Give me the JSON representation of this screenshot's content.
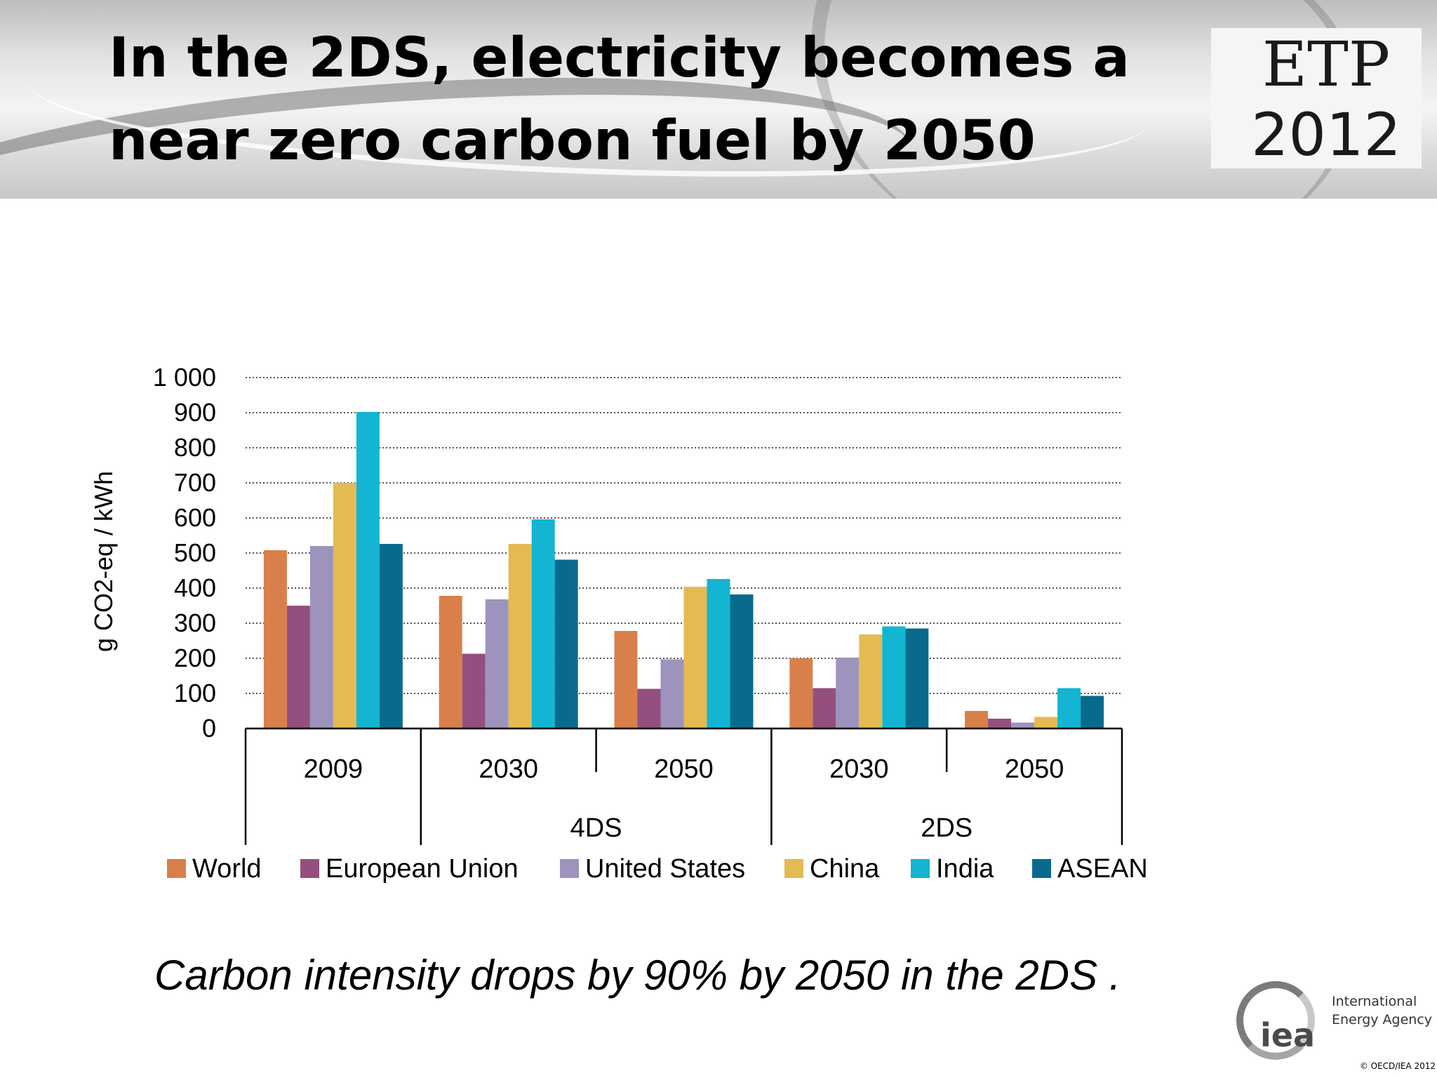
{
  "slide": {
    "title": "In the 2DS, electricity becomes a near zero carbon fuel by 2050",
    "caption": "Carbon intensity drops by 90% by 2050 in the 2DS .",
    "logo_etp": "ETP",
    "logo_etp_year": "2012",
    "iea_mark": "iea",
    "iea_name": "International Energy Agency",
    "copyright": "© OECD/IEA 2012"
  },
  "colors": {
    "World": "#D9804A",
    "European Union": "#93507E",
    "United States": "#9D93BD",
    "China": "#E4BB52",
    "India": "#13B5D2",
    "ASEAN": "#086B8E"
  },
  "chart_data": {
    "type": "bar",
    "ylabel": "g CO2-eq / kWh",
    "ylim": [
      0,
      1000
    ],
    "yticks": [
      0,
      100,
      200,
      300,
      400,
      500,
      600,
      700,
      800,
      900,
      1000
    ],
    "ytick_labels": [
      "0",
      "100",
      "200",
      "300",
      "400",
      "500",
      "600",
      "700",
      "800",
      "900",
      "1 000"
    ],
    "grid": true,
    "legend_position": "bottom",
    "categories": [
      "2009",
      "2030",
      "2050",
      "2030",
      "2050"
    ],
    "category_groups": [
      {
        "label": "",
        "categories": [
          "2009"
        ]
      },
      {
        "label": "4DS",
        "categories": [
          "2030",
          "2050"
        ]
      },
      {
        "label": "2DS",
        "categories": [
          "2030",
          "2050"
        ]
      }
    ],
    "series": [
      {
        "name": "World",
        "values": [
          508,
          378,
          278,
          200,
          50
        ]
      },
      {
        "name": "European Union",
        "values": [
          350,
          213,
          113,
          115,
          28
        ]
      },
      {
        "name": "United States",
        "values": [
          520,
          368,
          197,
          202,
          17
        ]
      },
      {
        "name": "China",
        "values": [
          700,
          526,
          404,
          268,
          33
        ]
      },
      {
        "name": "India",
        "values": [
          902,
          596,
          426,
          291,
          115
        ]
      },
      {
        "name": "ASEAN",
        "values": [
          526,
          481,
          382,
          285,
          93
        ]
      }
    ]
  }
}
